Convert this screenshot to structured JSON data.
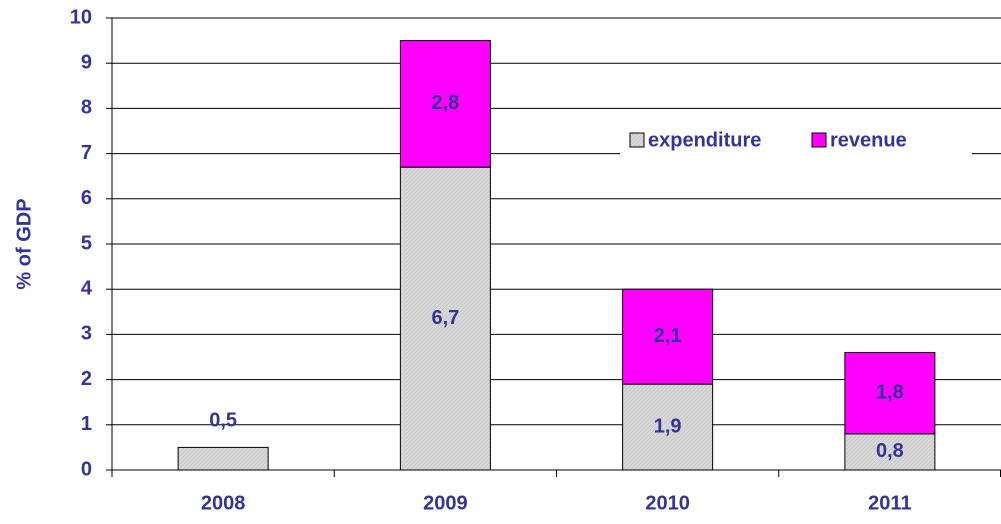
{
  "chart_data": {
    "type": "stacked-bar",
    "y_label": "% of GDP",
    "categories": [
      "2008",
      "2009",
      "2010",
      "2011"
    ],
    "series": [
      {
        "name": "expenditure",
        "color": "#d9d9d9",
        "values": [
          0.5,
          6.7,
          1.9,
          0.8
        ],
        "value_labels": [
          "0,5",
          "6,7",
          "1,9",
          "0,8"
        ]
      },
      {
        "name": "revenue",
        "color": "#ff00ff",
        "values": [
          null,
          2.8,
          2.1,
          1.8
        ],
        "value_labels": [
          null,
          "2,8",
          "2,1",
          "1,8"
        ]
      }
    ],
    "ylim": [
      0,
      10
    ],
    "yticks": [
      0,
      1,
      2,
      3,
      4,
      5,
      6,
      7,
      8,
      9,
      10
    ],
    "grid": true,
    "legend": "upper right"
  }
}
